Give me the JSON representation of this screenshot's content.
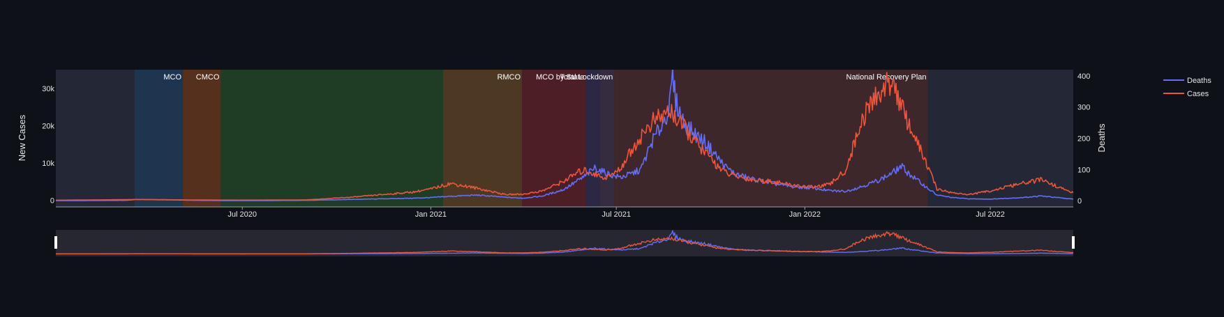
{
  "chart_data": {
    "type": "line",
    "title": "",
    "x_range": [
      "2020-01-01",
      "2022-09-20"
    ],
    "x_ticks": [
      {
        "date": "2020-07-01",
        "label": "Jul 2020"
      },
      {
        "date": "2021-01-01",
        "label": "Jan 2021"
      },
      {
        "date": "2021-07-01",
        "label": "Jul 2021"
      },
      {
        "date": "2022-01-01",
        "label": "Jan 2022"
      },
      {
        "date": "2022-07-01",
        "label": "Jul 2022"
      }
    ],
    "y_left": {
      "label": "New Cases",
      "range": [
        -1800,
        35000
      ],
      "ticks": [
        {
          "value": 0,
          "label": "0"
        },
        {
          "value": 10000,
          "label": "10k"
        },
        {
          "value": 20000,
          "label": "20k"
        },
        {
          "value": 30000,
          "label": "30k"
        }
      ]
    },
    "y_right": {
      "label": "Deaths",
      "range": [
        -20,
        420
      ],
      "ticks": [
        {
          "value": 0,
          "label": "0"
        },
        {
          "value": 100,
          "label": "100"
        },
        {
          "value": 200,
          "label": "200"
        },
        {
          "value": 300,
          "label": "300"
        },
        {
          "value": 400,
          "label": "400"
        }
      ]
    },
    "legend": {
      "placement": "top-right"
    },
    "phases": [
      {
        "label": "",
        "start": "2020-01-01",
        "end": "2020-03-18",
        "color": "#3a3f55"
      },
      {
        "label": "MCO",
        "start": "2020-03-18",
        "end": "2020-05-04",
        "color": "#2e5a8a"
      },
      {
        "label": "CMCO",
        "start": "2020-05-04",
        "end": "2020-06-10",
        "color": "#9a4f24"
      },
      {
        "label": "",
        "start": "2020-06-10",
        "end": "2020-10-14",
        "color": "#2f6a32"
      },
      {
        "label": "",
        "start": "2020-10-14",
        "end": "2021-01-13",
        "color": "#2f6a32"
      },
      {
        "label": "RMCO",
        "start": "2021-01-13",
        "end": "2021-03-31",
        "color": "#8a6030"
      },
      {
        "label": "MCO by State",
        "start": "2021-03-31",
        "end": "2021-06-01",
        "color": "#8a2c36"
      },
      {
        "label": "",
        "start": "2021-06-01",
        "end": "2021-06-15",
        "color": "#4a4070"
      },
      {
        "label": "Total Lockdown",
        "start": "2021-06-15",
        "end": "2021-06-29",
        "color": "#5e4868"
      },
      {
        "label": "National Recovery Plan",
        "start": "2021-06-29",
        "end": "2022-05-01",
        "color": "#6b3e40"
      },
      {
        "label": "",
        "start": "2022-05-01",
        "end": "2022-09-20",
        "color": "#3a3f55"
      }
    ],
    "series": [
      {
        "name": "Deaths",
        "axis": "right",
        "color": "#636efa",
        "x": [
          "2020-01-01",
          "2020-03-10",
          "2020-03-20",
          "2020-04-10",
          "2020-05-20",
          "2020-07-01",
          "2020-09-01",
          "2020-10-15",
          "2020-11-15",
          "2020-12-15",
          "2021-01-01",
          "2021-01-20",
          "2021-02-15",
          "2021-03-15",
          "2021-04-01",
          "2021-04-20",
          "2021-05-10",
          "2021-05-25",
          "2021-06-01",
          "2021-06-10",
          "2021-06-20",
          "2021-06-28",
          "2021-07-05",
          "2021-07-15",
          "2021-07-25",
          "2021-08-05",
          "2021-08-15",
          "2021-08-22",
          "2021-08-25",
          "2021-08-28",
          "2021-09-05",
          "2021-09-15",
          "2021-09-25",
          "2021-10-05",
          "2021-10-15",
          "2021-10-25",
          "2021-11-10",
          "2021-12-01",
          "2021-12-20",
          "2022-01-10",
          "2022-01-25",
          "2022-02-10",
          "2022-02-25",
          "2022-03-10",
          "2022-03-20",
          "2022-03-28",
          "2022-04-05",
          "2022-04-15",
          "2022-05-01",
          "2022-05-10",
          "2022-05-25",
          "2022-06-10",
          "2022-07-01",
          "2022-08-01",
          "2022-08-20",
          "2022-09-10",
          "2022-09-20"
        ],
        "y": [
          0,
          1,
          4,
          3,
          1,
          0,
          1,
          4,
          6,
          8,
          10,
          14,
          18,
          11,
          8,
          15,
          35,
          65,
          80,
          105,
          90,
          80,
          75,
          85,
          100,
          190,
          245,
          300,
          395,
          320,
          250,
          215,
          190,
          150,
          110,
          85,
          70,
          55,
          45,
          40,
          32,
          30,
          45,
          60,
          75,
          90,
          110,
          80,
          40,
          18,
          10,
          6,
          5,
          10,
          15,
          8,
          5
        ]
      },
      {
        "name": "Cases",
        "axis": "left",
        "color": "#ef553b",
        "x": [
          "2020-01-01",
          "2020-03-10",
          "2020-03-20",
          "2020-04-10",
          "2020-05-20",
          "2020-07-01",
          "2020-09-01",
          "2020-10-15",
          "2020-11-15",
          "2020-12-15",
          "2021-01-01",
          "2021-01-20",
          "2021-02-15",
          "2021-03-15",
          "2021-04-01",
          "2021-04-20",
          "2021-05-10",
          "2021-05-25",
          "2021-06-01",
          "2021-06-10",
          "2021-06-20",
          "2021-06-28",
          "2021-07-05",
          "2021-07-15",
          "2021-07-25",
          "2021-08-05",
          "2021-08-15",
          "2021-08-22",
          "2021-08-25",
          "2021-08-28",
          "2021-09-05",
          "2021-09-15",
          "2021-09-25",
          "2021-10-05",
          "2021-10-15",
          "2021-10-25",
          "2021-11-10",
          "2021-12-01",
          "2021-12-20",
          "2022-01-10",
          "2022-01-25",
          "2022-02-10",
          "2022-02-25",
          "2022-03-10",
          "2022-03-20",
          "2022-03-28",
          "2022-04-05",
          "2022-04-15",
          "2022-05-01",
          "2022-05-10",
          "2022-05-25",
          "2022-06-10",
          "2022-07-01",
          "2022-08-01",
          "2022-08-20",
          "2022-09-10",
          "2022-09-20"
        ],
        "y": [
          0,
          150,
          200,
          150,
          50,
          20,
          80,
          800,
          1500,
          2200,
          3000,
          4500,
          3200,
          1500,
          1600,
          2500,
          5000,
          7500,
          8000,
          7000,
          6000,
          7000,
          8500,
          13000,
          17000,
          21000,
          22500,
          24000,
          23500,
          22000,
          19500,
          16000,
          13000,
          10000,
          7500,
          6500,
          5500,
          5000,
          4000,
          3500,
          4200,
          8000,
          21000,
          27500,
          30000,
          32500,
          25000,
          19000,
          9000,
          3000,
          2000,
          1500,
          2500,
          4500,
          5500,
          3000,
          2000
        ]
      }
    ]
  }
}
